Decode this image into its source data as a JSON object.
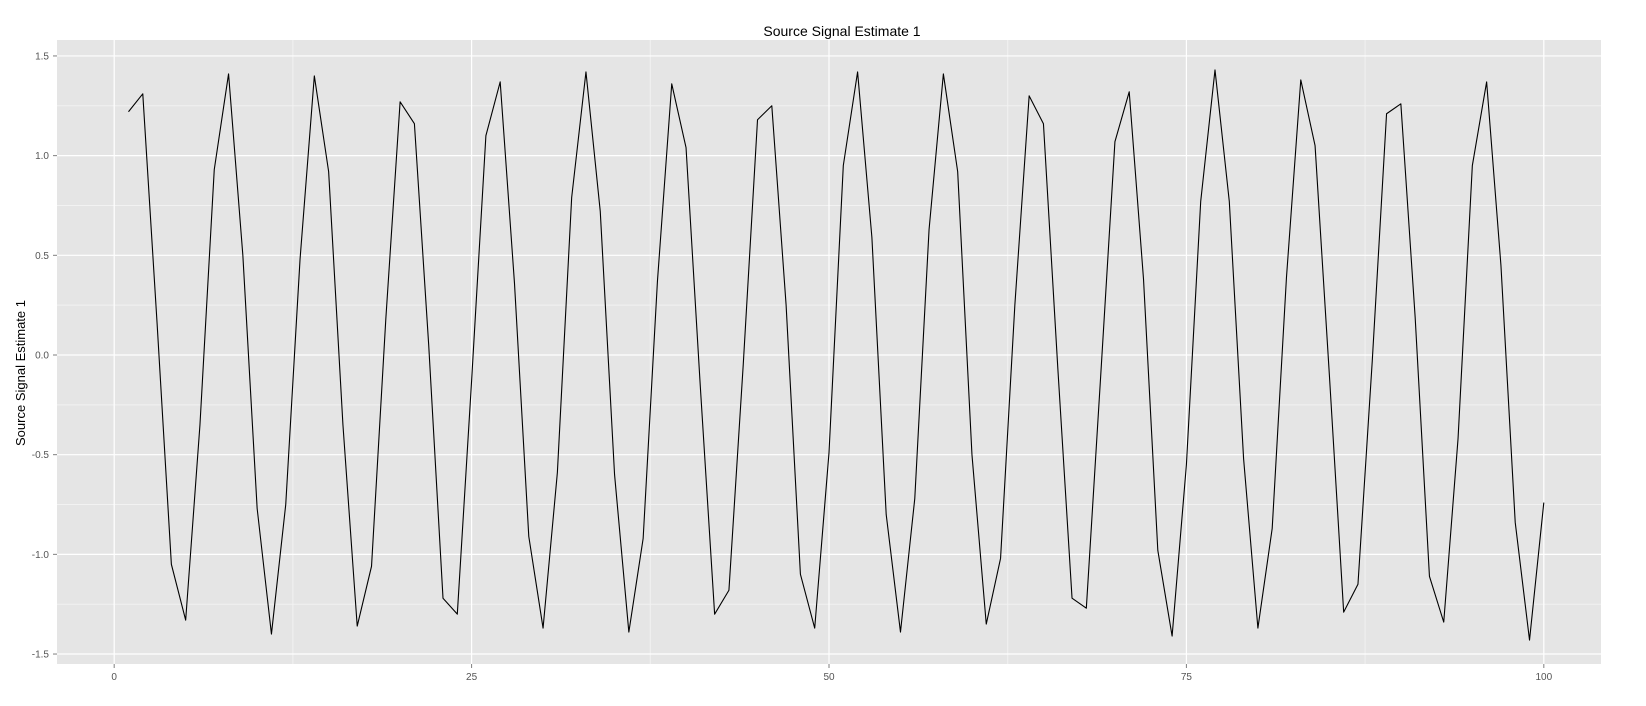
{
  "chart_data": {
    "type": "line",
    "title": "Source Signal Estimate 1",
    "xlabel": "",
    "ylabel": "Source Signal Estimate 1",
    "xlim": [
      -4,
      104
    ],
    "ylim": [
      -1.55,
      1.58
    ],
    "x_ticks": [
      0,
      25,
      50,
      75,
      100
    ],
    "x_tick_labels": [
      "0",
      "25",
      "50",
      "75",
      "100"
    ],
    "y_ticks": [
      -1.5,
      -1.0,
      -0.5,
      0.0,
      0.5,
      1.0,
      1.5
    ],
    "y_tick_labels": [
      "-1.5",
      "-1.0",
      "-0.5",
      "0.0",
      "0.5",
      "1.0",
      "1.5"
    ],
    "grid": true,
    "colors": {
      "panel_bg": "#e5e5e5",
      "grid_major": "#ffffff",
      "grid_minor": "#f2f2f2",
      "line": "#000000"
    },
    "series": [
      {
        "x": [
          1,
          2,
          3,
          4,
          5,
          6,
          7,
          8,
          9,
          10,
          11,
          12,
          13,
          14,
          15,
          16,
          17,
          18,
          19,
          20,
          21,
          22,
          23,
          24,
          25,
          26,
          27,
          28,
          29,
          30,
          31,
          32,
          33,
          34,
          35,
          36,
          37,
          38,
          39,
          40,
          41,
          42,
          43,
          44,
          45,
          46,
          47,
          48,
          49,
          50,
          51,
          52,
          53,
          54,
          55,
          56,
          57,
          58,
          59,
          60,
          61,
          62,
          63,
          64,
          65,
          66,
          67,
          68,
          69,
          70,
          71,
          72,
          73,
          74,
          75,
          76,
          77,
          78,
          79,
          80,
          81,
          82,
          83,
          84,
          85,
          86,
          87,
          88,
          89,
          90,
          91,
          92,
          93,
          94,
          95,
          96,
          97,
          98,
          99,
          100
        ],
        "y": [
          1.22,
          1.31,
          0.16,
          -1.05,
          -1.33,
          -0.35,
          0.93,
          1.41,
          0.5,
          -0.77,
          -1.4,
          -0.75,
          0.48,
          1.4,
          0.92,
          -0.35,
          -1.36,
          -1.06,
          0.18,
          1.27,
          1.16,
          0.05,
          -1.22,
          -1.3,
          -0.13,
          1.1,
          1.37,
          0.36,
          -0.91,
          -1.37,
          -0.59,
          0.79,
          1.42,
          0.72,
          -0.6,
          -1.39,
          -0.92,
          0.37,
          1.36,
          1.04,
          -0.16,
          -1.3,
          -1.18,
          -0.05,
          1.18,
          1.25,
          0.25,
          -1.1,
          -1.37,
          -0.49,
          0.95,
          1.42,
          0.59,
          -0.8,
          -1.39,
          -0.72,
          0.63,
          1.41,
          0.92,
          -0.5,
          -1.35,
          -1.02,
          0.25,
          1.3,
          1.16,
          -0.06,
          -1.22,
          -1.27,
          -0.11,
          1.07,
          1.32,
          0.38,
          -0.98,
          -1.41,
          -0.55,
          0.77,
          1.43,
          0.77,
          -0.52,
          -1.37,
          -0.87,
          0.39,
          1.38,
          1.05,
          -0.1,
          -1.29,
          -1.15,
          -0.03,
          1.21,
          1.26,
          0.19,
          -1.11,
          -1.34,
          -0.42,
          0.95,
          1.37,
          0.45,
          -0.84,
          -1.43,
          -0.74
        ]
      }
    ]
  }
}
